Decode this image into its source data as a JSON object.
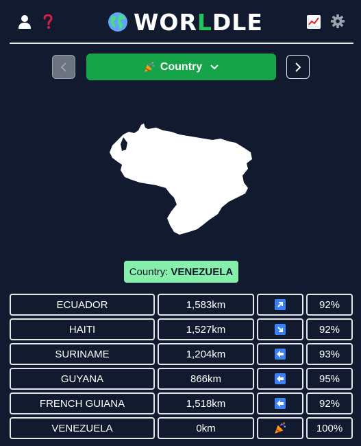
{
  "header": {
    "title_prefix": "WOR",
    "title_green": "L",
    "title_suffix": "DLE",
    "icons": [
      "user-icon",
      "help-icon",
      "globe-icon",
      "stats-icon",
      "gear-icon"
    ]
  },
  "controls": {
    "mode_label": "Country",
    "prev_icon": "chevron-left-icon",
    "next_icon": "chevron-right-icon"
  },
  "answer": {
    "prefix": "Country:",
    "country": "VENEZUELA"
  },
  "guesses": [
    {
      "name": "ECUADOR",
      "distance": "1,583km",
      "direction": "arrow-up-right",
      "percent": "92%"
    },
    {
      "name": "HAITI",
      "distance": "1,527km",
      "direction": "arrow-down-right",
      "percent": "92%"
    },
    {
      "name": "SURINAME",
      "distance": "1,204km",
      "direction": "arrow-left",
      "percent": "93%"
    },
    {
      "name": "GUYANA",
      "distance": "866km",
      "direction": "arrow-left",
      "percent": "95%"
    },
    {
      "name": "FRENCH GUIANA",
      "distance": "1,518km",
      "direction": "arrow-left",
      "percent": "92%"
    },
    {
      "name": "VENEZUELA",
      "distance": "0km",
      "direction": "party-popper",
      "percent": "100%"
    }
  ],
  "colors": {
    "background": "#111a2e",
    "accent_green": "#16a34a",
    "title_green": "#22c55e",
    "badge_green": "#86efac",
    "arrow_blue": "#3b82f6"
  }
}
